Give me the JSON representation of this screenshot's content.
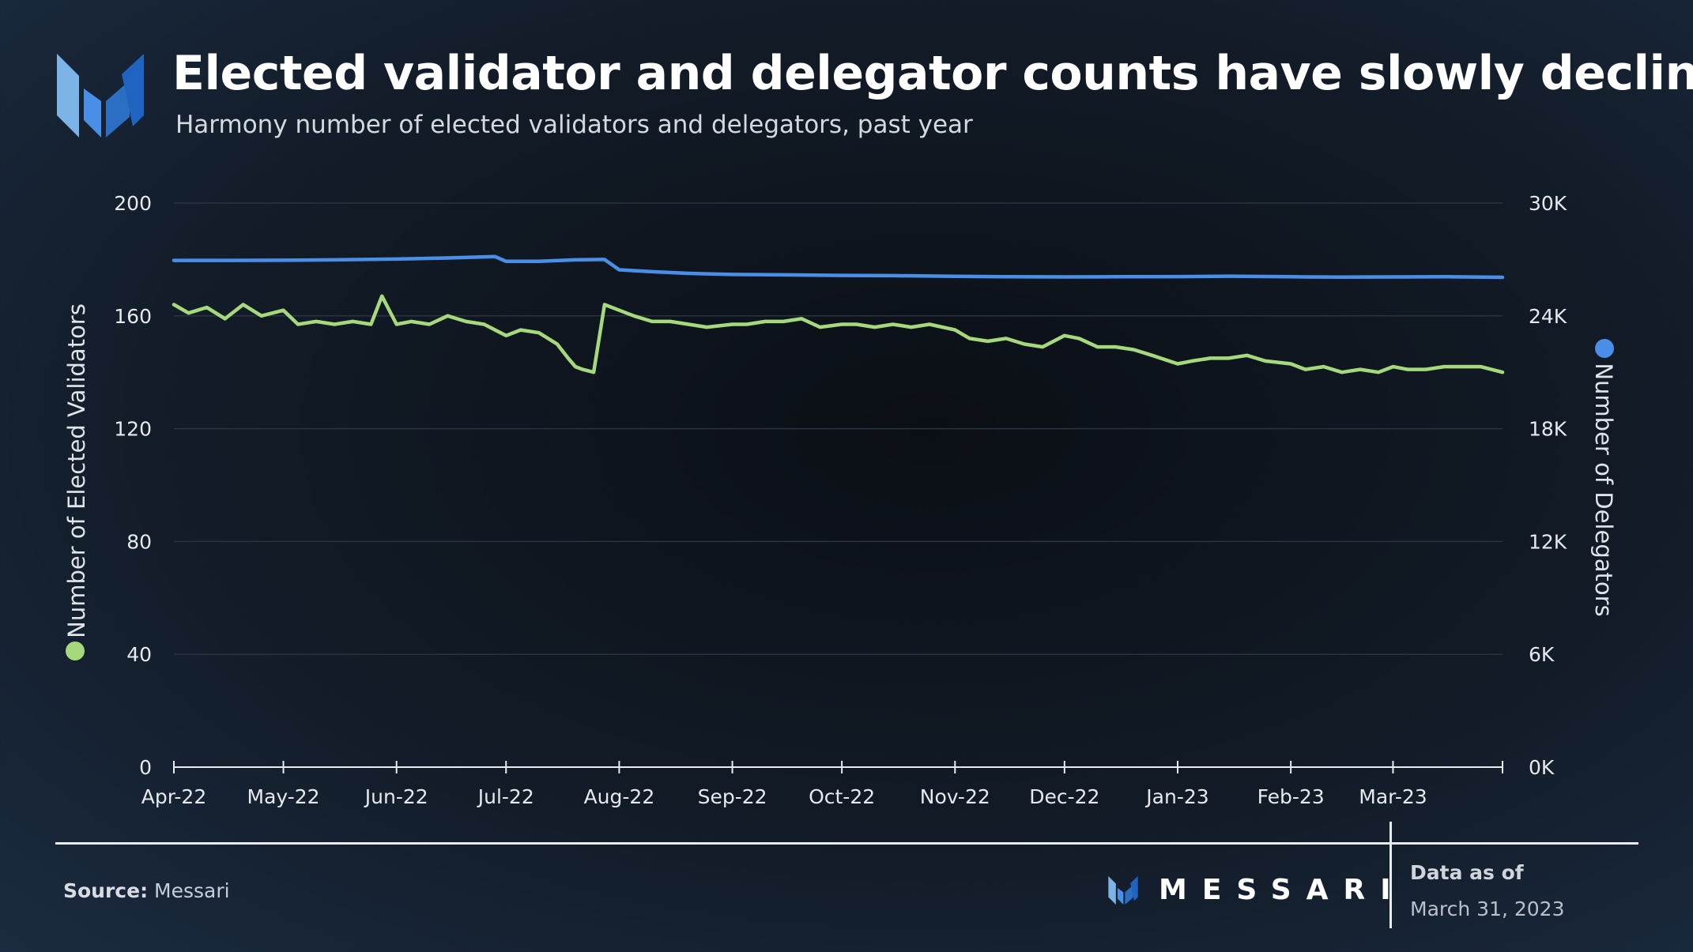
{
  "header": {
    "title": "Elected validator and delegator counts have slowly declined",
    "subtitle": "Harmony number of elected validators and delegators, past year"
  },
  "footer": {
    "source_label": "Source:",
    "source_value": "Messari",
    "brand": "MESSARI",
    "asof_label": "Data as of",
    "asof_date": "March 31, 2023"
  },
  "colors": {
    "validators": "#a6d97c",
    "delegators": "#4a8fe7",
    "grid": "#2a3340",
    "axis": "#e8ebef"
  },
  "chart_data": {
    "type": "line",
    "title": "Elected validator and delegator counts have slowly declined",
    "subtitle": "Harmony number of elected validators and delegators, past year",
    "x_tick_labels": [
      "Apr-22",
      "May-22",
      "Jun-22",
      "Jul-22",
      "Aug-22",
      "Sep-22",
      "Oct-22",
      "Nov-22",
      "Dec-22",
      "Jan-23",
      "Feb-23",
      "Mar-23"
    ],
    "x_range": [
      "2022-04-01",
      "2023-03-31"
    ],
    "left_axis": {
      "label": "Number of Elected Validators",
      "ylim": [
        0,
        200
      ],
      "ticks": [
        "0",
        "40",
        "80",
        "120",
        "160",
        "200"
      ]
    },
    "right_axis": {
      "label": "Number of Delegators",
      "ylim": [
        0,
        30000
      ],
      "ticks": [
        "0K",
        "6K",
        "12K",
        "18K",
        "24K",
        "30K"
      ]
    },
    "grid": true,
    "series": [
      {
        "name": "Number of Elected Validators",
        "axis": "left",
        "x": [
          "2022-04-01",
          "2022-04-05",
          "2022-04-10",
          "2022-04-15",
          "2022-04-20",
          "2022-04-25",
          "2022-05-01",
          "2022-05-05",
          "2022-05-10",
          "2022-05-15",
          "2022-05-20",
          "2022-05-25",
          "2022-05-28",
          "2022-06-01",
          "2022-06-05",
          "2022-06-10",
          "2022-06-15",
          "2022-06-20",
          "2022-06-25",
          "2022-07-01",
          "2022-07-05",
          "2022-07-10",
          "2022-07-15",
          "2022-07-18",
          "2022-07-20",
          "2022-07-22",
          "2022-07-25",
          "2022-07-28",
          "2022-08-01",
          "2022-08-05",
          "2022-08-10",
          "2022-08-15",
          "2022-08-20",
          "2022-08-25",
          "2022-09-01",
          "2022-09-05",
          "2022-09-10",
          "2022-09-15",
          "2022-09-20",
          "2022-09-25",
          "2022-10-01",
          "2022-10-05",
          "2022-10-10",
          "2022-10-15",
          "2022-10-20",
          "2022-10-25",
          "2022-11-01",
          "2022-11-05",
          "2022-11-10",
          "2022-11-15",
          "2022-11-20",
          "2022-11-25",
          "2022-12-01",
          "2022-12-05",
          "2022-12-10",
          "2022-12-15",
          "2022-12-20",
          "2022-12-25",
          "2023-01-01",
          "2023-01-05",
          "2023-01-10",
          "2023-01-15",
          "2023-01-20",
          "2023-01-25",
          "2023-02-01",
          "2023-02-05",
          "2023-02-10",
          "2023-02-15",
          "2023-02-20",
          "2023-02-25",
          "2023-03-01",
          "2023-03-05",
          "2023-03-10",
          "2023-03-15",
          "2023-03-20",
          "2023-03-25",
          "2023-03-31"
        ],
        "values": [
          164,
          161,
          163,
          159,
          164,
          160,
          162,
          157,
          158,
          157,
          158,
          157,
          167,
          157,
          158,
          157,
          160,
          158,
          157,
          153,
          155,
          154,
          150,
          145,
          142,
          141,
          140,
          164,
          162,
          160,
          158,
          158,
          157,
          156,
          157,
          157,
          158,
          158,
          159,
          156,
          157,
          157,
          156,
          157,
          156,
          157,
          155,
          152,
          151,
          152,
          150,
          149,
          153,
          152,
          149,
          149,
          148,
          146,
          143,
          144,
          145,
          145,
          146,
          144,
          143,
          141,
          142,
          140,
          141,
          140,
          142,
          141,
          141,
          142,
          142,
          142,
          140
        ]
      },
      {
        "name": "Number of Delegators",
        "axis": "right",
        "x": [
          "2022-04-01",
          "2022-04-15",
          "2022-05-01",
          "2022-05-15",
          "2022-06-01",
          "2022-06-15",
          "2022-06-28",
          "2022-07-01",
          "2022-07-10",
          "2022-07-20",
          "2022-07-28",
          "2022-08-01",
          "2022-08-10",
          "2022-08-20",
          "2022-09-01",
          "2022-09-15",
          "2022-10-01",
          "2022-10-15",
          "2022-11-01",
          "2022-11-15",
          "2022-12-01",
          "2022-12-15",
          "2023-01-01",
          "2023-01-15",
          "2023-02-01",
          "2023-02-15",
          "2023-03-01",
          "2023-03-15",
          "2023-03-31"
        ],
        "values": [
          26950,
          26950,
          26960,
          26980,
          27020,
          27080,
          27150,
          26900,
          26900,
          26980,
          27000,
          26450,
          26350,
          26260,
          26200,
          26180,
          26150,
          26140,
          26100,
          26080,
          26070,
          26080,
          26090,
          26110,
          26080,
          26060,
          26070,
          26080,
          26050
        ]
      }
    ]
  }
}
